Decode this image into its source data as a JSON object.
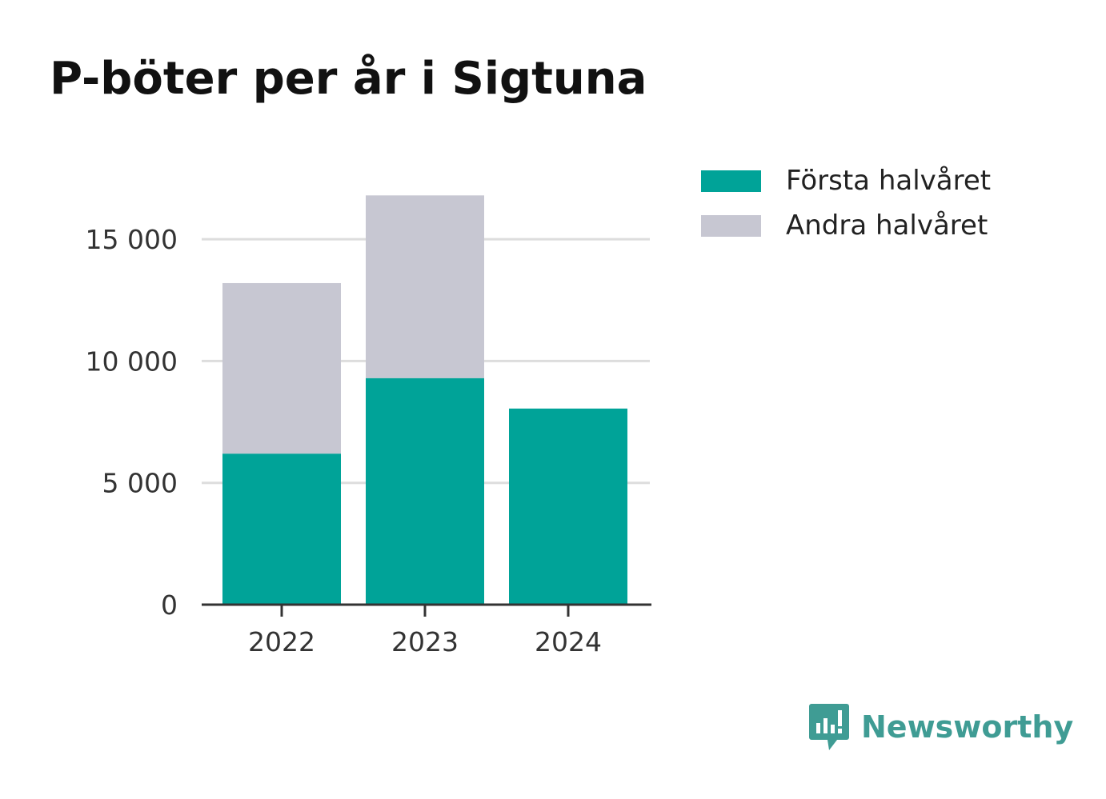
{
  "colors": {
    "series_first": "#00a398",
    "series_second": "#c7c7d2",
    "grid": "#dddddd",
    "axis": "#333333",
    "brand": "#3f9c94"
  },
  "chart_data": {
    "type": "bar",
    "stacked": true,
    "title": "P-böter per år i Sigtuna",
    "categories": [
      "2022",
      "2023",
      "2024"
    ],
    "series": [
      {
        "name": "Första halvåret",
        "values": [
          6200,
          9300,
          8050
        ]
      },
      {
        "name": "Andra halvåret",
        "values": [
          7000,
          7500,
          0
        ]
      }
    ],
    "ylim": [
      0,
      17500
    ],
    "yticks": [
      0,
      5000,
      10000,
      15000
    ],
    "ytick_labels": [
      "0",
      "5 000",
      "10 000",
      "15 000"
    ],
    "grid": true,
    "legend_position": "top-right",
    "xlabel": "",
    "ylabel": ""
  },
  "brand": {
    "name": "Newsworthy",
    "icon": "newsworthy-logo-icon"
  }
}
